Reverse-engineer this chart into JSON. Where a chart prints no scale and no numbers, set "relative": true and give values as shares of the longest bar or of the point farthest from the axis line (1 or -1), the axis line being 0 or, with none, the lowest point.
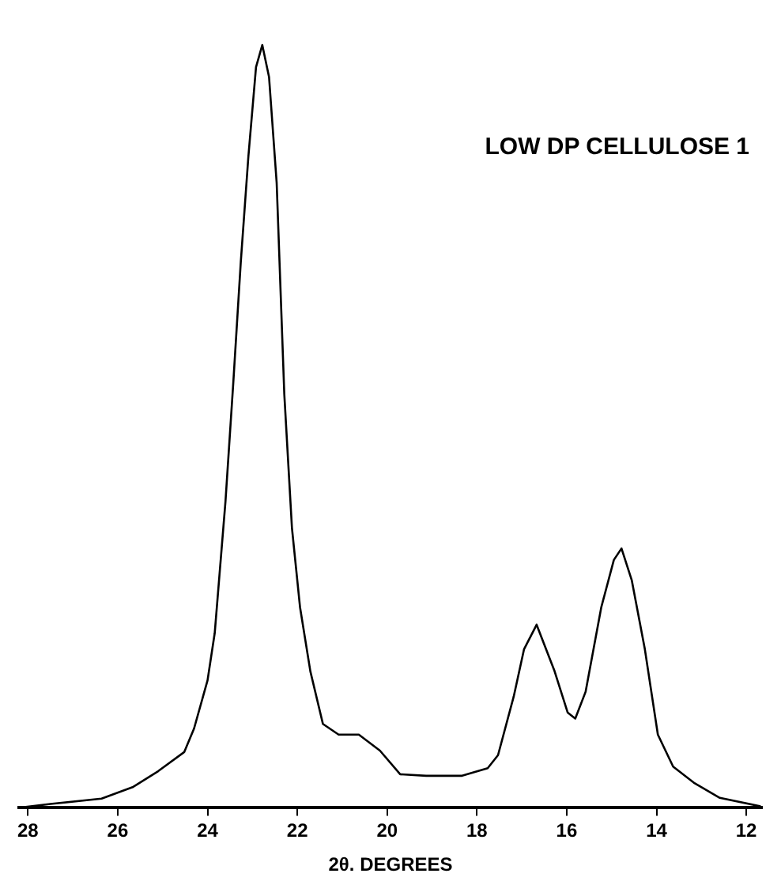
{
  "chart_data": {
    "type": "line",
    "relative": true,
    "xlabel": "2θ. DEGREES",
    "annotations": [
      "LOW DP CELLULOSE 1"
    ],
    "xlim": [
      28.2,
      11.65
    ],
    "xticks": [
      28,
      26,
      24,
      22,
      20,
      18,
      16,
      14,
      12
    ],
    "grid": false,
    "legend": false,
    "marker": "none",
    "line_style": "solid",
    "series": [
      {
        "color": "#000000",
        "x": [
          28.2,
          27.5,
          26.36,
          25.67,
          25.1,
          24.52,
          24.3,
          24.0,
          23.84,
          23.6,
          23.43,
          23.26,
          23.09,
          22.92,
          22.78,
          22.63,
          22.46,
          22.29,
          22.12,
          21.94,
          21.71,
          21.43,
          21.08,
          20.63,
          20.16,
          19.71,
          19.13,
          18.33,
          17.76,
          17.53,
          17.18,
          16.95,
          16.67,
          16.27,
          15.98,
          15.81,
          15.58,
          15.23,
          14.95,
          14.78,
          14.55,
          14.26,
          13.97,
          13.63,
          13.17,
          12.59,
          11.68
        ],
        "values": [
          0,
          0.005,
          0.012,
          0.027,
          0.048,
          0.073,
          0.104,
          0.167,
          0.229,
          0.402,
          0.554,
          0.715,
          0.854,
          0.971,
          1.0,
          0.958,
          0.819,
          0.542,
          0.367,
          0.263,
          0.179,
          0.11,
          0.096,
          0.096,
          0.075,
          0.044,
          0.042,
          0.042,
          0.052,
          0.069,
          0.146,
          0.208,
          0.24,
          0.179,
          0.125,
          0.117,
          0.152,
          0.263,
          0.325,
          0.34,
          0.298,
          0.208,
          0.096,
          0.054,
          0.033,
          0.013,
          0.002
        ]
      }
    ]
  }
}
